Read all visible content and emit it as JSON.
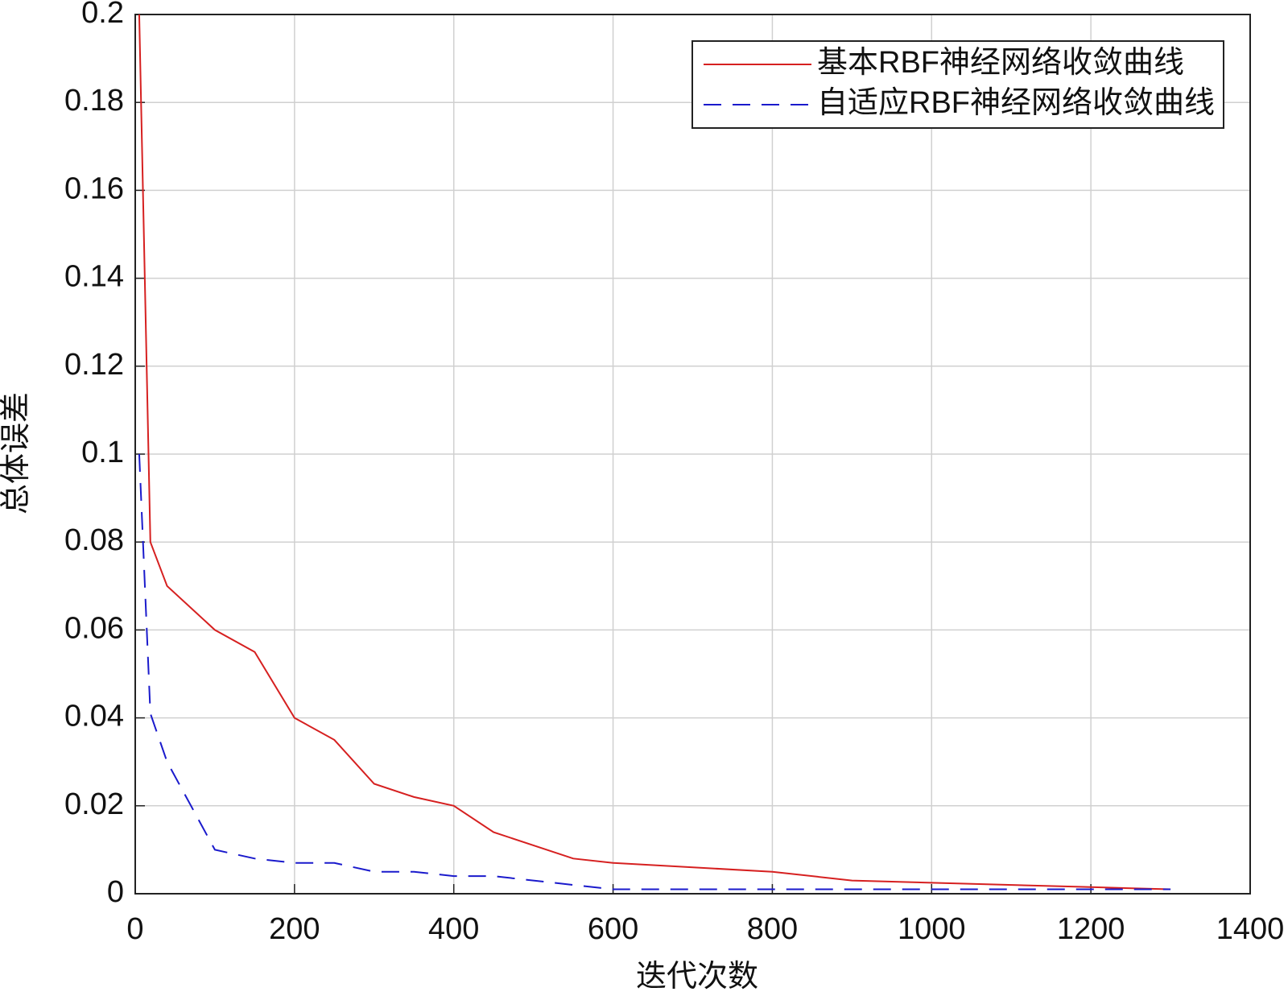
{
  "chart_data": {
    "type": "line",
    "x_label": "迭代次数",
    "y_label": "总体误差",
    "series": [
      {
        "name": "基本RBF神经网络收敛曲线",
        "color": "#d62020",
        "dash": "solid",
        "x": [
          5,
          19,
          40,
          100,
          150,
          200,
          250,
          300,
          350,
          400,
          450,
          550,
          600,
          800,
          900,
          1000,
          1200,
          1300
        ],
        "values": [
          0.2,
          0.08,
          0.07,
          0.06,
          0.055,
          0.04,
          0.035,
          0.025,
          0.022,
          0.02,
          0.014,
          0.008,
          0.007,
          0.005,
          0.003,
          0.0025,
          0.0015,
          0.001
        ]
      },
      {
        "name": "自适应RBF神经网络收敛曲线",
        "color": "#1a1acc",
        "dash": "dashed",
        "x": [
          5,
          19,
          40,
          100,
          150,
          200,
          250,
          300,
          350,
          400,
          450,
          550,
          600,
          1300
        ],
        "values": [
          0.1,
          0.041,
          0.03,
          0.01,
          0.008,
          0.007,
          0.007,
          0.005,
          0.005,
          0.004,
          0.004,
          0.002,
          0.001,
          0.001
        ]
      }
    ],
    "xlim": [
      0,
      1400
    ],
    "xticks": [
      0,
      200,
      400,
      600,
      800,
      1000,
      1200,
      1400
    ],
    "ylim": [
      0,
      0.2
    ],
    "yticks": [
      0,
      0.02,
      0.04,
      0.06,
      0.08,
      0.1,
      0.12,
      0.14,
      0.16,
      0.18,
      0.2
    ],
    "grid": true,
    "legend": "top-right"
  }
}
